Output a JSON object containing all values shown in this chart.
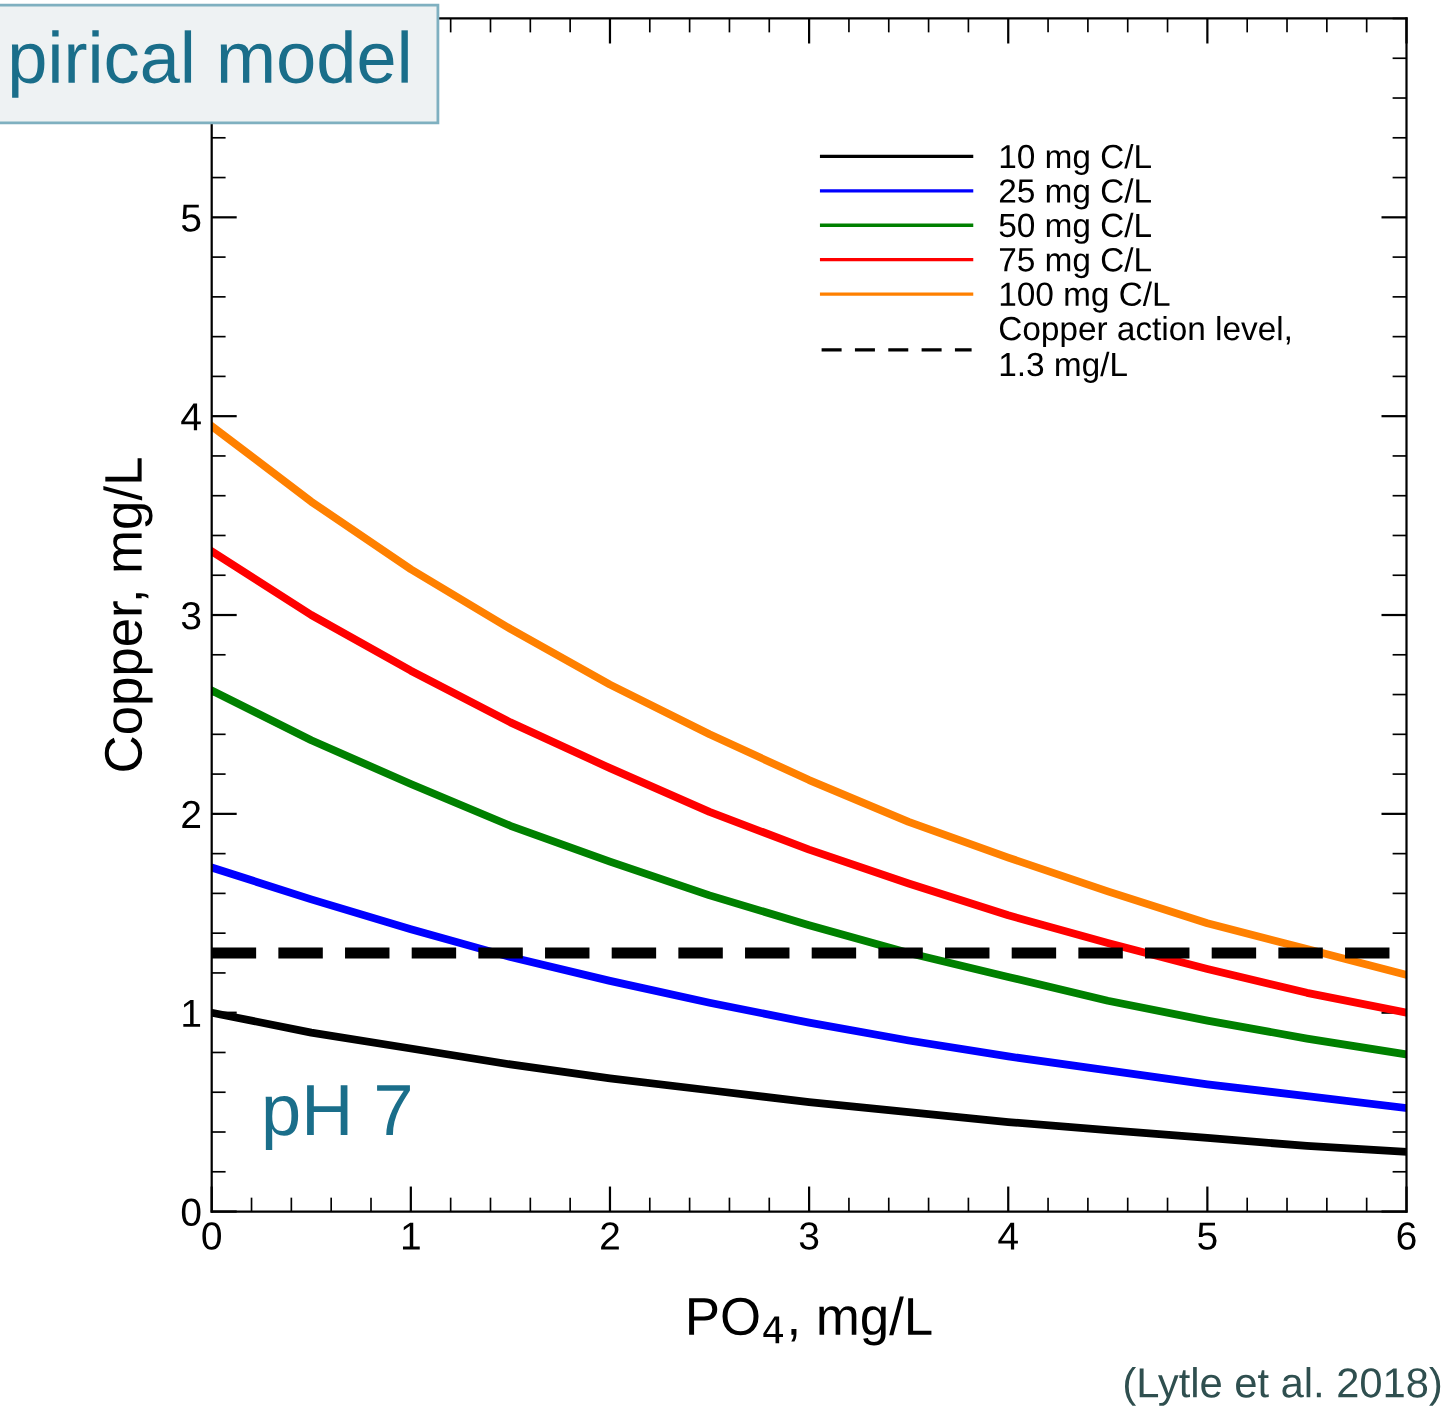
{
  "chart_data": {
    "type": "line",
    "xlabel": "PO$_{4}$, mg/L",
    "ylabel": "Copper, mg/L",
    "x": [
      0,
      0.5,
      1,
      1.5,
      2,
      2.5,
      3,
      3.5,
      4,
      4.5,
      5,
      5.5,
      6
    ],
    "series": [
      {
        "name": "10 mg C/L",
        "color": "#000000",
        "values": [
          1.0,
          0.9,
          0.82,
          0.74,
          0.67,
          0.61,
          0.55,
          0.5,
          0.45,
          0.41,
          0.37,
          0.33,
          0.3
        ]
      },
      {
        "name": "25 mg C/L",
        "color": "#0000ff",
        "values": [
          1.73,
          1.57,
          1.42,
          1.28,
          1.16,
          1.05,
          0.95,
          0.86,
          0.78,
          0.71,
          0.64,
          0.58,
          0.52
        ]
      },
      {
        "name": "50 mg C/L",
        "color": "#008000",
        "values": [
          2.62,
          2.37,
          2.15,
          1.94,
          1.76,
          1.59,
          1.44,
          1.3,
          1.18,
          1.06,
          0.96,
          0.87,
          0.79
        ]
      },
      {
        "name": "75 mg C/L",
        "color": "#ff0000",
        "values": [
          3.32,
          3.0,
          2.72,
          2.46,
          2.23,
          2.01,
          1.82,
          1.65,
          1.49,
          1.35,
          1.22,
          1.1,
          1.0
        ]
      },
      {
        "name": "100 mg C/L",
        "color": "#ff8000",
        "values": [
          3.95,
          3.57,
          3.23,
          2.93,
          2.65,
          2.4,
          2.17,
          1.96,
          1.78,
          1.61,
          1.45,
          1.32,
          1.19
        ]
      }
    ],
    "ref_lines": [
      {
        "axis": "y",
        "value": 1.3,
        "label": "Copper action level,\n1.3 mg/L",
        "color": "#000000",
        "line_style": "dashed"
      }
    ],
    "xlim": [
      0,
      6
    ],
    "xticks": [
      0,
      1,
      2,
      3,
      4,
      5,
      6
    ],
    "ylim": [
      0,
      6
    ],
    "yticks": [
      0,
      1,
      2,
      3,
      4,
      5
    ],
    "grid": false,
    "legend": "top right",
    "marker": "none",
    "line_style": "solid",
    "annotations": [
      "pirical model",
      "pH 7",
      "(Lytle et al. 2018)"
    ]
  }
}
